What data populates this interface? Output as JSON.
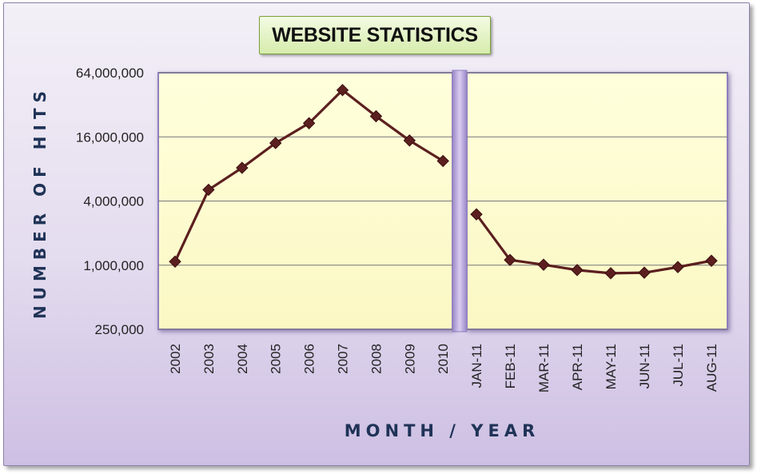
{
  "chart_data": {
    "type": "line",
    "title": "WEBSITE STATISTICS",
    "xlabel": "MONTH / YEAR",
    "ylabel": "NUMBER OF HITS",
    "yscale": "log2",
    "ylim": [
      250000,
      64000000
    ],
    "yticks": [
      250000,
      1000000,
      4000000,
      16000000,
      64000000
    ],
    "ytick_labels": [
      "250,000",
      "1,000,000",
      "4,000,000",
      "16,000,000",
      "64,000,000"
    ],
    "grid": true,
    "legend": "none",
    "panels": [
      {
        "name": "yearly",
        "categories": [
          "2002",
          "2003",
          "2004",
          "2005",
          "2006",
          "2007",
          "2008",
          "2009",
          "2010"
        ],
        "values": [
          1080000,
          5100000,
          8200000,
          14000000,
          21500000,
          44000000,
          25000000,
          14800000,
          9500000
        ]
      },
      {
        "name": "monthly",
        "categories": [
          "JAN-11",
          "FEB-11",
          "MAR-11",
          "APR-11",
          "MAY-11",
          "JUN-11",
          "JUL-11",
          "AUG-11"
        ],
        "values": [
          3000000,
          1120000,
          1010000,
          900000,
          840000,
          850000,
          960000,
          1100000
        ]
      }
    ],
    "colors": {
      "line": "#5c1f1f",
      "plot_background": "#ffffd4",
      "divider": "#b4a2d8",
      "frame_background": "#e4dcef"
    }
  }
}
